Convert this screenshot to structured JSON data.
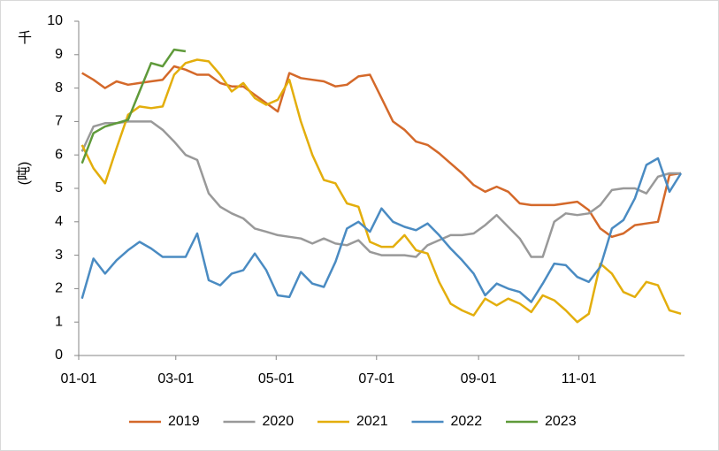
{
  "chart_data": {
    "type": "line",
    "y_label_top": "千",
    "y_label": "(吨)",
    "x": [
      2,
      9,
      16,
      23,
      30,
      37,
      44,
      51,
      58,
      65,
      72,
      79,
      86,
      93,
      100,
      107,
      114,
      121,
      128,
      135,
      142,
      149,
      156,
      163,
      170,
      177,
      184,
      191,
      198,
      205,
      212,
      219,
      226,
      233,
      240,
      247,
      254,
      261,
      268,
      275,
      282,
      289,
      296,
      303,
      310,
      317,
      324,
      331,
      338,
      345,
      352,
      359,
      366
    ],
    "xlim": [
      0,
      366
    ],
    "xticks": [
      {
        "value": 0,
        "label": "01-01"
      },
      {
        "value": 59,
        "label": "03-01"
      },
      {
        "value": 120,
        "label": "05-01"
      },
      {
        "value": 181,
        "label": "07-01"
      },
      {
        "value": 243,
        "label": "09-01"
      },
      {
        "value": 304,
        "label": "11-01"
      }
    ],
    "ylim": [
      0,
      10
    ],
    "yticks": [
      0,
      1,
      2,
      3,
      4,
      5,
      6,
      7,
      8,
      9,
      10
    ],
    "grid": false,
    "legend": "bottom",
    "series": [
      {
        "name": "2019",
        "color": "#d4692a",
        "values": [
          8.45,
          8.25,
          8.0,
          8.2,
          8.1,
          8.15,
          8.2,
          8.25,
          8.65,
          8.55,
          8.4,
          8.4,
          8.15,
          8.05,
          8.05,
          7.8,
          7.55,
          7.3,
          8.45,
          8.3,
          8.25,
          8.2,
          8.05,
          8.1,
          8.35,
          8.4,
          7.7,
          7.0,
          6.75,
          6.4,
          6.3,
          6.05,
          5.75,
          5.45,
          5.1,
          4.9,
          5.05,
          4.9,
          4.55,
          4.5,
          4.5,
          4.5,
          4.55,
          4.6,
          4.35,
          3.8,
          3.55,
          3.65,
          3.9,
          3.95,
          4.0,
          5.4,
          5.45
        ]
      },
      {
        "name": "2020",
        "color": "#999999",
        "values": [
          6.1,
          6.85,
          6.95,
          6.95,
          7.0,
          7.0,
          7.0,
          6.75,
          6.4,
          6.0,
          5.85,
          4.85,
          4.45,
          4.25,
          4.1,
          3.8,
          3.7,
          3.6,
          3.55,
          3.5,
          3.35,
          3.5,
          3.35,
          3.3,
          3.45,
          3.1,
          3.0,
          3.0,
          3.0,
          2.95,
          3.3,
          3.45,
          3.6,
          3.6,
          3.65,
          3.9,
          4.2,
          3.85,
          3.5,
          2.95,
          2.95,
          4.0,
          4.25,
          4.2,
          4.25,
          4.5,
          4.95,
          5.0,
          5.0,
          4.85,
          5.35,
          5.45,
          5.45
        ]
      },
      {
        "name": "2021",
        "color": "#e3ae0c",
        "values": [
          6.3,
          5.6,
          5.15,
          6.2,
          7.2,
          7.45,
          7.4,
          7.45,
          8.4,
          8.75,
          8.85,
          8.8,
          8.4,
          7.9,
          8.15,
          7.7,
          7.5,
          7.65,
          8.25,
          7.0,
          6.0,
          5.25,
          5.15,
          4.55,
          4.45,
          3.4,
          3.25,
          3.25,
          3.6,
          3.15,
          3.05,
          2.2,
          1.55,
          1.35,
          1.2,
          1.7,
          1.5,
          1.7,
          1.55,
          1.3,
          1.8,
          1.65,
          1.35,
          1.0,
          1.25,
          2.75,
          2.45,
          1.9,
          1.75,
          2.2,
          2.1,
          1.35,
          1.25
        ]
      },
      {
        "name": "2022",
        "color": "#4a8bc2",
        "values": [
          1.7,
          2.9,
          2.45,
          2.85,
          3.15,
          3.4,
          3.2,
          2.95,
          2.95,
          2.95,
          3.65,
          2.25,
          2.1,
          2.45,
          2.55,
          3.05,
          2.55,
          1.8,
          1.75,
          2.5,
          2.15,
          2.05,
          2.8,
          3.8,
          4.0,
          3.7,
          4.4,
          4.0,
          3.85,
          3.75,
          3.95,
          3.6,
          3.2,
          2.85,
          2.45,
          1.8,
          2.15,
          2.0,
          1.9,
          1.6,
          2.15,
          2.75,
          2.7,
          2.35,
          2.2,
          2.65,
          3.8,
          4.05,
          4.7,
          5.7,
          5.9,
          4.9,
          5.45
        ]
      },
      {
        "name": "2023",
        "color": "#5f9a3a",
        "values": [
          5.75,
          6.65,
          6.85,
          6.95,
          7.05,
          7.9,
          8.75,
          8.65,
          9.15,
          9.1,
          null,
          null,
          null,
          null,
          null,
          null,
          null,
          null,
          null,
          null,
          null,
          null,
          null,
          null,
          null,
          null,
          null,
          null,
          null,
          null,
          null,
          null,
          null,
          null,
          null,
          null,
          null,
          null,
          null,
          null,
          null,
          null,
          null,
          null,
          null,
          null,
          null,
          null,
          null,
          null,
          null,
          null,
          null
        ]
      }
    ]
  }
}
